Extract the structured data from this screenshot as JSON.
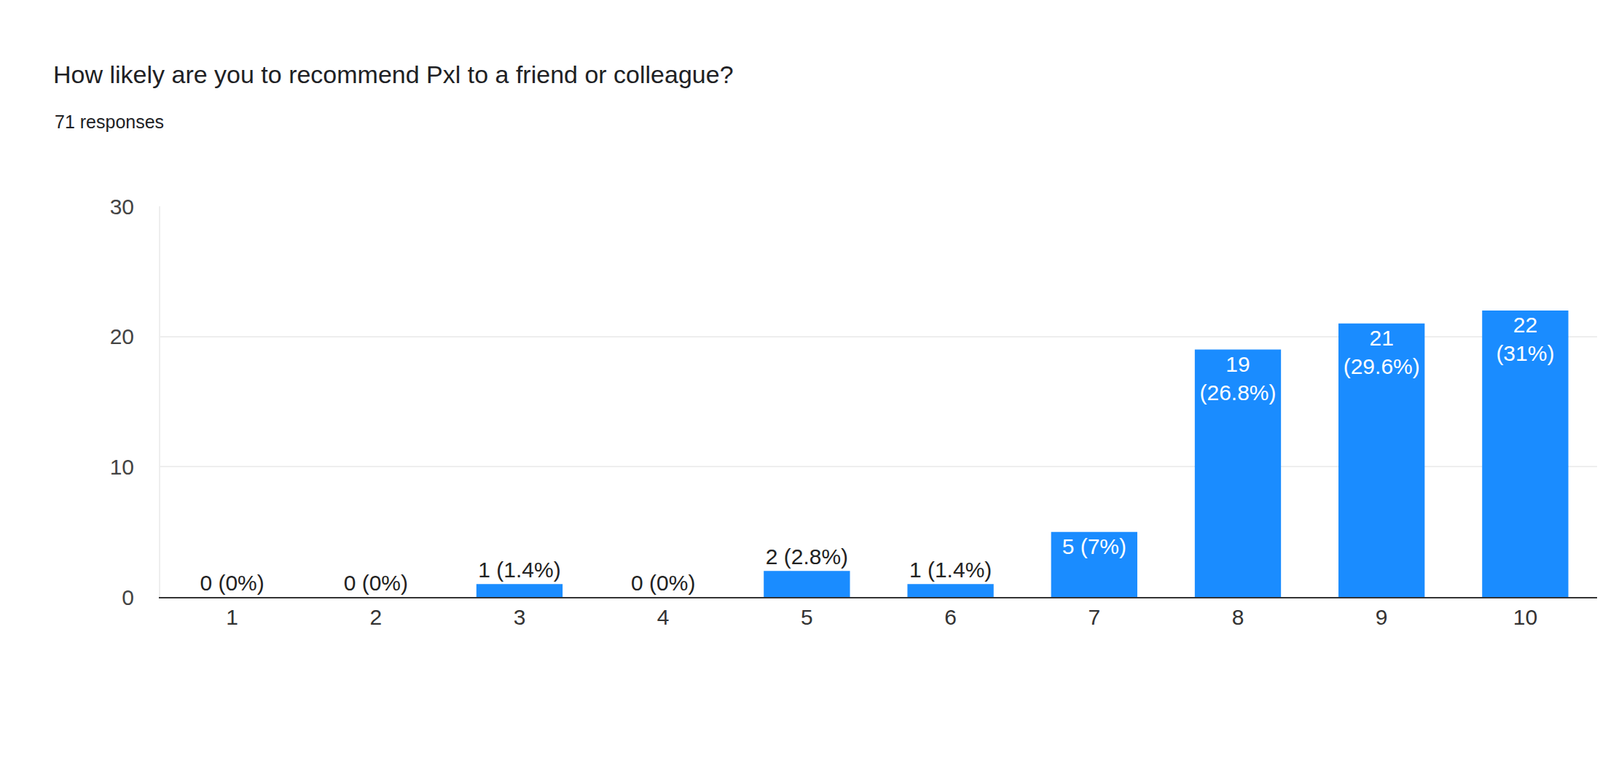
{
  "chart_data": {
    "type": "bar",
    "title": "How likely are you to recommend Pxl to a friend or colleague?",
    "subtitle": "71 responses",
    "categories": [
      "1",
      "2",
      "3",
      "4",
      "5",
      "6",
      "7",
      "8",
      "9",
      "10"
    ],
    "values": [
      0,
      0,
      1,
      0,
      2,
      1,
      5,
      19,
      21,
      22
    ],
    "value_labels": [
      "0 (0%)",
      "0 (0%)",
      "1 (1.4%)",
      "0 (0%)",
      "2 (2.8%)",
      "1 (1.4%)",
      "5 (7%)",
      "19 (26.8%)",
      "21 (29.6%)",
      "22 (31%)"
    ],
    "data_labels": true,
    "color": "#1a8cff",
    "ylim": [
      0,
      30
    ],
    "yticks": [
      0,
      10,
      20,
      30
    ],
    "grid": true
  }
}
